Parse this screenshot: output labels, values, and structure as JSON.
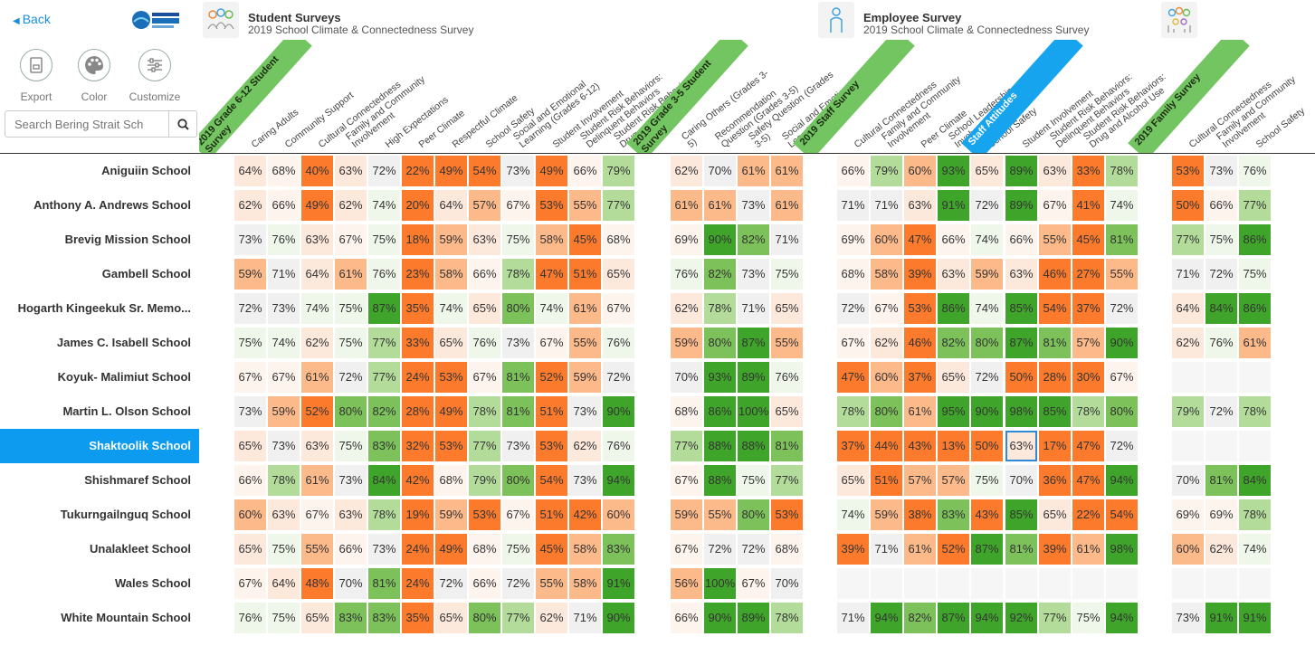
{
  "nav": {
    "back_label": "Back"
  },
  "surveys": [
    {
      "title": "Student Surveys",
      "subtitle": "2019 School Climate & Connectedness Survey",
      "icon": "students-icon"
    },
    {
      "title": "Employee Survey",
      "subtitle": "2019 School Climate & Connectedness Survey",
      "icon": "employee-icon"
    },
    {
      "title": "",
      "subtitle": "",
      "icon": "family-icon"
    }
  ],
  "tools": {
    "export": "Export",
    "color": "Color",
    "customize": "Customize"
  },
  "search": {
    "placeholder": "Search Bering Strait Sch",
    "value": ""
  },
  "selected_school": "Shaktoolik School",
  "colors": {
    "strong_low": "#fb7a2c",
    "mid_low": "#fcb98a",
    "light_low": "#fde8dc",
    "faint_low": "#fef4ee",
    "neutral": "#f0f0f0",
    "faint_high": "#eef7ea",
    "light_high": "#b3dc9b",
    "mid_high": "#7cc15a",
    "strong_high": "#3fa52a",
    "selected_row": "#0d9bf0",
    "banner_green": "#72c560",
    "banner_blue": "#17a4ee"
  },
  "groups": [
    {
      "banner": "2019 Grade 6-12 Student Survey",
      "color": "#72c560",
      "columns": [
        {
          "label": "Caring Adults",
          "values": [
            64,
            62,
            73,
            59,
            72,
            75,
            67,
            73,
            65,
            66,
            60,
            65,
            67,
            76
          ]
        },
        {
          "label": "Community Support",
          "values": [
            68,
            66,
            76,
            71,
            73,
            74,
            67,
            59,
            73,
            78,
            63,
            75,
            64,
            75
          ]
        },
        {
          "label": "Cultural Connectedness",
          "values": [
            40,
            49,
            63,
            64,
            74,
            62,
            61,
            52,
            63,
            61,
            67,
            55,
            48,
            65
          ]
        },
        {
          "label": "Family and Community Involvement",
          "values": [
            63,
            62,
            67,
            61,
            75,
            75,
            72,
            80,
            75,
            73,
            63,
            66,
            70,
            83
          ]
        },
        {
          "label": "High Expectations",
          "values": [
            72,
            74,
            75,
            76,
            87,
            77,
            77,
            82,
            83,
            84,
            78,
            73,
            81,
            83
          ]
        },
        {
          "label": "Peer Climate",
          "values": [
            22,
            20,
            18,
            23,
            35,
            33,
            24,
            28,
            32,
            42,
            19,
            24,
            24,
            35
          ]
        },
        {
          "label": "Respectful Climate",
          "values": [
            49,
            64,
            59,
            58,
            74,
            65,
            53,
            49,
            53,
            68,
            59,
            49,
            72,
            65
          ]
        },
        {
          "label": "School Safety",
          "values": [
            54,
            57,
            63,
            66,
            65,
            76,
            67,
            78,
            77,
            79,
            53,
            68,
            66,
            80
          ]
        },
        {
          "label": "Social and Emotional Learning (Grades 6-12)",
          "values": [
            73,
            67,
            75,
            78,
            80,
            73,
            81,
            81,
            73,
            80,
            67,
            75,
            72,
            77
          ]
        },
        {
          "label": "Student Involvement",
          "values": [
            49,
            53,
            58,
            47,
            74,
            67,
            52,
            51,
            53,
            54,
            51,
            45,
            55,
            62
          ]
        },
        {
          "label": "Student Risk Behaviors: Delinquent Behaviors",
          "values": [
            66,
            55,
            45,
            51,
            61,
            55,
            59,
            73,
            62,
            73,
            42,
            58,
            58,
            71
          ]
        },
        {
          "label": "Student Risk Behaviors: Drug and Alcohol Use",
          "values": [
            79,
            77,
            68,
            65,
            67,
            76,
            72,
            90,
            76,
            94,
            60,
            83,
            91,
            90
          ]
        }
      ]
    },
    {
      "banner": "2019 Grade 3-5 Student Survey",
      "color": "#72c560",
      "columns": [
        {
          "label": "Caring Others (Grades 3-5)",
          "values": [
            62,
            61,
            69,
            76,
            62,
            59,
            70,
            68,
            77,
            67,
            59,
            67,
            56,
            66
          ]
        },
        {
          "label": "Recommendation Question (Grades 3-5)",
          "values": [
            70,
            61,
            90,
            82,
            78,
            80,
            93,
            86,
            88,
            88,
            55,
            72,
            100,
            90
          ]
        },
        {
          "label": "Safety Question (Grades 3-5)",
          "values": [
            61,
            73,
            82,
            73,
            71,
            87,
            89,
            100,
            88,
            75,
            80,
            72,
            67,
            89
          ]
        },
        {
          "label": "Social and Emotional Learning (Grades 3-5)",
          "values": [
            61,
            61,
            71,
            75,
            65,
            55,
            76,
            65,
            81,
            77,
            53,
            68,
            70,
            78
          ]
        }
      ]
    },
    {
      "banner": "2019 Staff Survey",
      "color": "#72c560",
      "columns": [
        {
          "label": "Cultural Connectedness",
          "values": [
            66,
            71,
            69,
            68,
            72,
            67,
            47,
            78,
            37,
            65,
            74,
            39,
            null,
            71
          ]
        },
        {
          "label": "Family and Community Involvement",
          "values": [
            79,
            71,
            60,
            58,
            67,
            62,
            60,
            80,
            44,
            51,
            59,
            71,
            null,
            94
          ]
        },
        {
          "label": "Peer Climate",
          "values": [
            60,
            63,
            47,
            39,
            53,
            46,
            37,
            61,
            43,
            57,
            38,
            61,
            null,
            82
          ]
        },
        {
          "label": "School Leadership and Involvement",
          "values": [
            93,
            91,
            66,
            63,
            86,
            82,
            65,
            95,
            13,
            57,
            83,
            52,
            null,
            87
          ]
        },
        {
          "label": "School Safety",
          "values": [
            65,
            72,
            74,
            59,
            74,
            80,
            72,
            90,
            50,
            75,
            43,
            87,
            null,
            94
          ]
        }
      ]
    },
    {
      "banner": "Staff Attitudes",
      "color": "#17a4ee",
      "columns": [
        {
          "label": "Student Involvement",
          "values": [
            89,
            89,
            66,
            63,
            85,
            87,
            50,
            98,
            63,
            70,
            85,
            81,
            null,
            92
          ]
        },
        {
          "label": "Student Risk Behaviors: Delinquent Behaviors",
          "values": [
            63,
            67,
            55,
            46,
            54,
            81,
            28,
            85,
            17,
            36,
            65,
            39,
            null,
            77
          ]
        },
        {
          "label": "Student Risk Behaviors: Drug and Alcohol Use",
          "values": [
            33,
            41,
            45,
            27,
            37,
            57,
            30,
            78,
            47,
            47,
            22,
            61,
            null,
            75
          ]
        },
        {
          "label": "",
          "values": [
            78,
            74,
            81,
            55,
            72,
            90,
            67,
            80,
            72,
            94,
            54,
            98,
            null,
            94
          ]
        }
      ]
    },
    {
      "banner": "2019 Family Survey",
      "color": "#72c560",
      "columns": [
        {
          "label": "Cultural Connectedness",
          "values": [
            53,
            50,
            77,
            71,
            64,
            62,
            null,
            79,
            null,
            70,
            69,
            60,
            null,
            73
          ]
        },
        {
          "label": "Family and Community Involvement",
          "values": [
            73,
            66,
            75,
            72,
            84,
            76,
            null,
            72,
            null,
            81,
            69,
            62,
            null,
            91
          ]
        },
        {
          "label": "School Safety",
          "values": [
            76,
            77,
            86,
            75,
            86,
            61,
            null,
            78,
            null,
            84,
            78,
            74,
            null,
            91
          ]
        }
      ]
    }
  ],
  "schools": [
    "Aniguiin School",
    "Anthony A. Andrews School",
    "Brevig Mission School",
    "Gambell School",
    "Hogarth Kingeekuk Sr. Memo...",
    "James C. Isabell School",
    "Koyuk- Malimiut School",
    "Martin L. Olson School",
    "Shaktoolik School",
    "Shishmaref School",
    "Tukurngailnguq School",
    "Unalakleet School",
    "Wales School",
    "White Mountain School"
  ],
  "highlighted_cell": {
    "school": "Shaktoolik School",
    "group": "Staff Attitudes",
    "column": 0
  }
}
